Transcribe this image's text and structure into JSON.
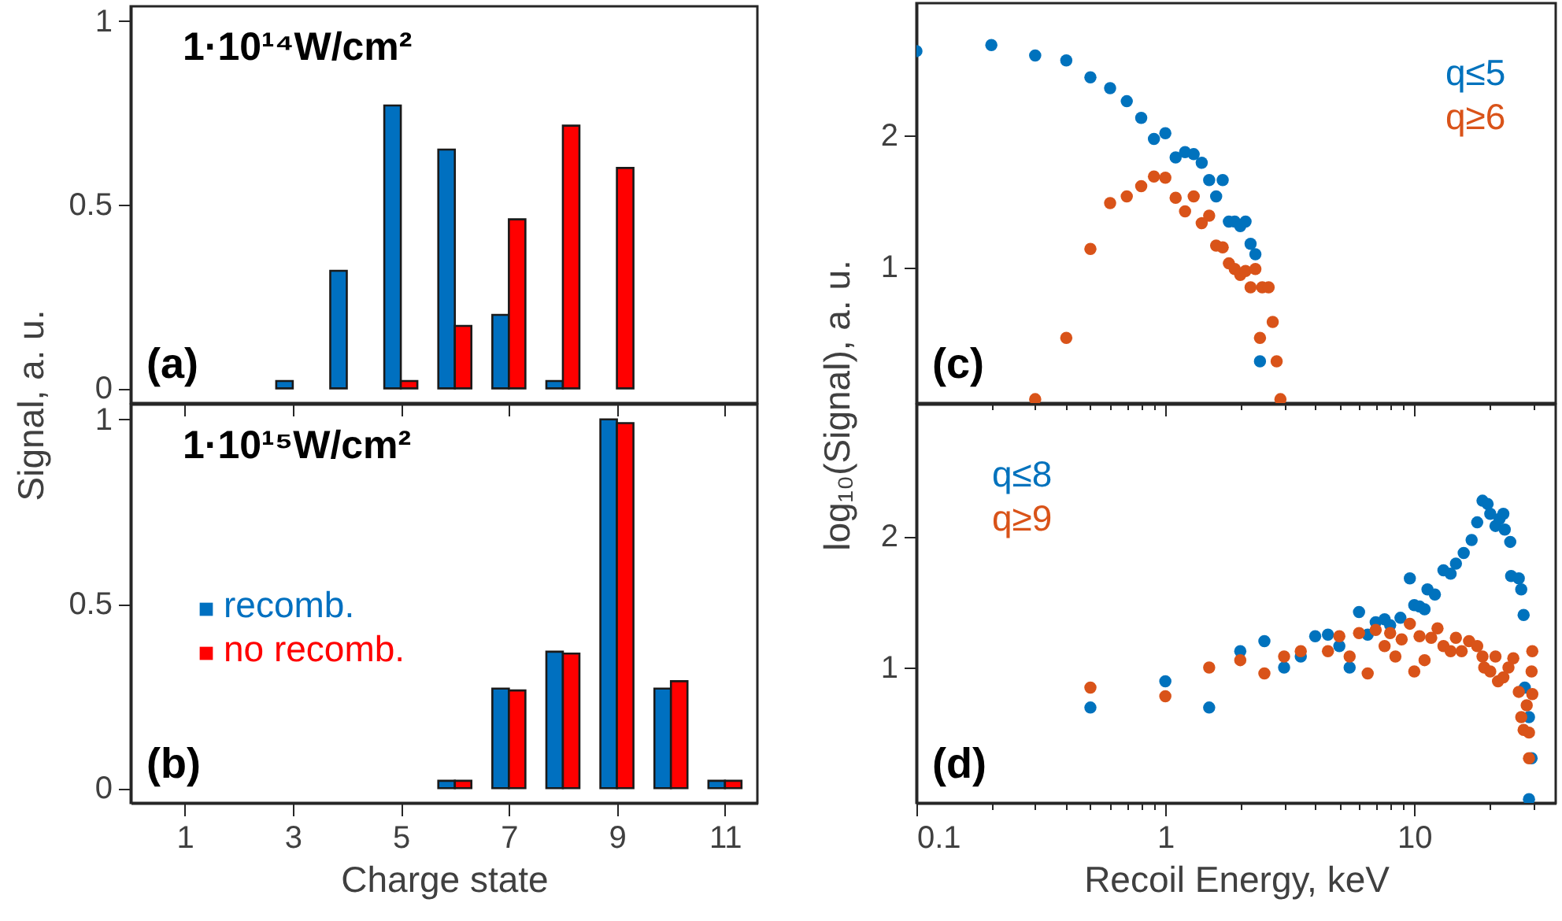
{
  "chart_data": [
    {
      "type": "bar",
      "annotations": [
        "1·10¹⁴W/cm²",
        "(a)"
      ],
      "x": [
        3,
        4,
        5,
        6,
        7,
        8,
        9
      ],
      "xlim": [
        0,
        11.6
      ],
      "xticks": [
        1,
        3,
        5,
        7,
        9,
        11
      ],
      "ylim": [
        -0.04,
        1.04
      ],
      "yticks": [
        0,
        0.5,
        1
      ],
      "tick_labels": "y",
      "series": [
        {
          "color": "#0070c0",
          "values": [
            0.02,
            0.32,
            0.77,
            0.65,
            0.2,
            0.02,
            null
          ]
        },
        {
          "color": "#ff0000",
          "values": [
            null,
            null,
            0.02,
            0.17,
            0.46,
            0.715,
            0.6
          ]
        }
      ]
    },
    {
      "type": "bar",
      "annotations": [
        "1·10¹⁵W/cm²",
        "(b)"
      ],
      "xlabel": "Charge state",
      "ylabel": "Signal, a. u.",
      "legend": "left",
      "x": [
        6,
        7,
        8,
        9,
        10,
        11
      ],
      "xlim": [
        0,
        11.6
      ],
      "xticks": [
        1,
        3,
        5,
        7,
        9,
        11
      ],
      "ylim": [
        -0.04,
        1.04
      ],
      "yticks": [
        0,
        0.5,
        1
      ],
      "series": [
        {
          "name": "recomb.",
          "color": "#0070c0",
          "values": [
            0.02,
            0.27,
            0.37,
            1.0,
            0.27,
            0.02
          ]
        },
        {
          "name": "no recomb.",
          "color": "#ff0000",
          "values": [
            0.02,
            0.265,
            0.365,
            0.99,
            0.29,
            0.02
          ]
        }
      ]
    },
    {
      "type": "scatter",
      "annotations": [
        "(c)"
      ],
      "log": "xy",
      "marker": "circle",
      "legend": "top right",
      "tick_labels": "y",
      "xlim": [
        0.1,
        37
      ],
      "ylim": [
        0.49,
        4
      ],
      "yticks": [
        1,
        2
      ],
      "xticks": [
        0.1,
        {
          "value": 0.2,
          "label": null
        },
        {
          "value": 0.3,
          "label": null
        },
        {
          "value": 0.4,
          "label": null
        },
        {
          "value": 0.5,
          "label": null
        },
        {
          "value": 0.6,
          "label": null
        },
        {
          "value": 0.7,
          "label": null
        },
        {
          "value": 0.8,
          "label": null
        },
        {
          "value": 0.9,
          "label": null
        },
        1,
        {
          "value": 2,
          "label": null
        },
        {
          "value": 3,
          "label": null
        },
        {
          "value": 4,
          "label": null
        },
        {
          "value": 5,
          "label": null
        },
        {
          "value": 6,
          "label": null
        },
        {
          "value": 7,
          "label": null
        },
        {
          "value": 8,
          "label": null
        },
        {
          "value": 9,
          "label": null
        },
        10,
        {
          "value": 20,
          "label": null
        },
        {
          "value": 30,
          "label": null
        }
      ],
      "series": [
        {
          "name": "q≤5",
          "color": "#0072bd",
          "x": [
            0.1,
            0.2,
            0.3,
            0.4,
            0.5,
            0.6,
            0.7,
            0.8,
            0.9,
            1.0,
            1.1,
            1.2,
            1.3,
            1.4,
            1.5,
            1.6,
            1.7,
            1.8,
            1.9,
            2.0,
            2.1,
            2.2,
            2.3,
            2.4
          ],
          "values": [
            3.11,
            3.21,
            3.04,
            2.96,
            2.71,
            2.56,
            2.39,
            2.19,
            1.96,
            2.02,
            1.78,
            1.83,
            1.81,
            1.73,
            1.58,
            1.45,
            1.58,
            1.27,
            1.27,
            1.24,
            1.27,
            1.13,
            1.07,
            0.61
          ]
        },
        {
          "name": "q≥6",
          "color": "#d95319",
          "x": [
            0.3,
            0.4,
            0.5,
            0.6,
            0.7,
            0.8,
            0.9,
            1.0,
            1.1,
            1.2,
            1.3,
            1.4,
            1.5,
            1.6,
            1.7,
            1.8,
            1.9,
            2.0,
            2.1,
            2.2,
            2.3,
            2.45,
            2.6,
            2.4,
            2.7,
            2.8,
            2.9
          ],
          "values": [
            0.5,
            0.69,
            1.1,
            1.4,
            1.45,
            1.53,
            1.61,
            1.6,
            1.44,
            1.34,
            1.45,
            1.26,
            1.31,
            1.12,
            1.11,
            1.02,
            0.99,
            0.96,
            0.98,
            0.9,
            0.99,
            0.9,
            0.9,
            0.69,
            0.75,
            0.61,
            0.5
          ]
        }
      ]
    },
    {
      "type": "scatter",
      "annotations": [
        "(d)"
      ],
      "xlabel": "Recoil Energy, keV",
      "ylabel": "log₁₀(Signal), a. u.",
      "log": "xy",
      "marker": "circle",
      "legend": "top left",
      "xlim": [
        0.1,
        37
      ],
      "ylim": [
        0.49,
        4
      ],
      "yticks": [
        1,
        2
      ],
      "xticks": [
        0.1,
        {
          "value": 0.2,
          "label": null
        },
        {
          "value": 0.3,
          "label": null
        },
        {
          "value": 0.4,
          "label": null
        },
        {
          "value": 0.5,
          "label": null
        },
        {
          "value": 0.6,
          "label": null
        },
        {
          "value": 0.7,
          "label": null
        },
        {
          "value": 0.8,
          "label": null
        },
        {
          "value": 0.9,
          "label": null
        },
        1,
        {
          "value": 2,
          "label": null
        },
        {
          "value": 3,
          "label": null
        },
        {
          "value": 4,
          "label": null
        },
        {
          "value": 5,
          "label": null
        },
        {
          "value": 6,
          "label": null
        },
        {
          "value": 7,
          "label": null
        },
        {
          "value": 8,
          "label": null
        },
        {
          "value": 9,
          "label": null
        },
        10,
        {
          "value": 20,
          "label": null
        },
        {
          "value": 30,
          "label": null
        }
      ],
      "series": [
        {
          "name": "q≤8",
          "color": "#0072bd",
          "x": [
            0.5,
            1.0,
            1.5,
            2.0,
            2.5,
            3.0,
            3.5,
            4.0,
            4.5,
            5.0,
            5.5,
            6.0,
            6.5,
            7.0,
            7.6,
            8.0,
            8.8,
            9.6,
            10,
            10.5,
            11,
            11.3,
            12.1,
            13.1,
            14,
            14.7,
            15.8,
            17,
            17.9,
            18.8,
            19.7,
            20.2,
            21.2,
            22,
            22.8,
            23.1,
            24.3,
            24.5,
            26.3,
            26.9,
            27.5,
            27.8,
            28.9,
            29.6,
            28.9
          ],
          "values": [
            0.81,
            0.93,
            0.81,
            1.09,
            1.15,
            1.0,
            1.06,
            1.18,
            1.19,
            1.12,
            1.0,
            1.34,
            1.19,
            1.27,
            1.29,
            1.25,
            1.3,
            1.6,
            1.39,
            1.38,
            1.36,
            1.51,
            1.47,
            1.67,
            1.64,
            1.73,
            1.83,
            1.96,
            2.15,
            2.41,
            2.37,
            2.25,
            2.11,
            2.19,
            2.25,
            2.07,
            1.94,
            1.62,
            1.6,
            1.51,
            1.32,
            0.9,
            0.77,
            0.62,
            0.5
          ]
        },
        {
          "name": "q≥9",
          "color": "#d95319",
          "x": [
            0.5,
            1.0,
            1.5,
            2.0,
            2.5,
            3.0,
            3.5,
            4.5,
            5.0,
            5.5,
            6.0,
            6.5,
            7.0,
            7.6,
            8.0,
            8.4,
            8.9,
            9.6,
            10,
            10.5,
            11,
            11.7,
            12.4,
            13.1,
            14.0,
            14.7,
            15.5,
            16.6,
            17.9,
            18.8,
            19.1,
            20.2,
            21.2,
            21.7,
            22.8,
            23.9,
            25.0,
            26.3,
            26.9,
            27.5,
            28.3,
            28.9,
            28.9,
            29.8,
            29.6,
            29.8
          ],
          "values": [
            0.9,
            0.86,
            1.0,
            1.04,
            0.97,
            1.06,
            1.09,
            1.09,
            1.18,
            1.06,
            1.2,
            0.97,
            1.22,
            1.12,
            1.2,
            1.06,
            1.16,
            1.26,
            0.98,
            1.18,
            1.04,
            1.17,
            1.23,
            1.12,
            1.09,
            1.17,
            1.09,
            1.15,
            1.12,
            1.06,
            1.0,
            0.98,
            1.06,
            0.93,
            0.95,
            1.0,
            1.05,
            0.88,
            0.77,
            0.72,
            0.82,
            0.71,
            0.62,
            0.87,
            0.98,
            1.09
          ]
        }
      ]
    }
  ]
}
